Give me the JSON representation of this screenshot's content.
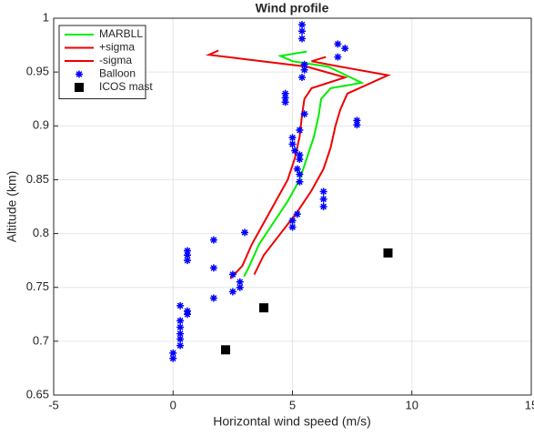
{
  "chart_data": {
    "type": "line",
    "title": "Wind profile",
    "x_label": "Horizontal wind speed (m/s)",
    "y_label": "Altitude (km)",
    "xlim": [
      -5,
      15
    ],
    "xticks": [
      -5,
      0,
      5,
      10,
      15
    ],
    "ylim": [
      0.65,
      1
    ],
    "yticks": [
      0.65,
      0.7,
      0.75,
      0.8,
      0.85,
      0.9,
      0.95,
      1
    ],
    "grid": true,
    "legend": "upper-left",
    "series": [
      {
        "name": "MARBLL",
        "color": "#00ee00",
        "mode": "line",
        "x": [
          2.97,
          3.2,
          3.6,
          4.2,
          4.8,
          5.3,
          5.6,
          5.9,
          6.1,
          6.2,
          6.6,
          7.9,
          6.5,
          5.0,
          4.5,
          5.6
        ],
        "y": [
          0.76,
          0.77,
          0.79,
          0.81,
          0.83,
          0.85,
          0.87,
          0.89,
          0.91,
          0.925,
          0.935,
          0.94,
          0.955,
          0.96,
          0.965,
          0.969
        ]
      },
      {
        "name": "+sigma",
        "color": "#ee0000",
        "mode": "line",
        "x": [
          2.4,
          2.9,
          3.3,
          3.8,
          4.3,
          4.8,
          5.1,
          5.3,
          5.4,
          5.5,
          5.8,
          7.2,
          5.6,
          3.0,
          1.5,
          1.9
        ],
        "y": [
          0.758,
          0.77,
          0.79,
          0.81,
          0.83,
          0.85,
          0.87,
          0.89,
          0.91,
          0.925,
          0.935,
          0.945,
          0.955,
          0.962,
          0.966,
          0.97
        ]
      },
      {
        "name": "-sigma",
        "color": "#ee0000",
        "mode": "line",
        "x": [
          3.4,
          3.8,
          4.5,
          5.2,
          5.8,
          6.3,
          6.6,
          6.8,
          7.0,
          7.3,
          9.0,
          7.0,
          5.8,
          6.4
        ],
        "y": [
          0.762,
          0.78,
          0.8,
          0.82,
          0.84,
          0.86,
          0.88,
          0.9,
          0.915,
          0.93,
          0.947,
          0.955,
          0.96,
          0.964
        ]
      },
      {
        "name": "Balloon",
        "color": "#0000ff",
        "mode": "star",
        "x": [
          5.4,
          5.4,
          5.4,
          6.9,
          7.2,
          6.9,
          5.5,
          5.5,
          5.4,
          4.7,
          4.7,
          4.7,
          5.5,
          7.7,
          7.7,
          5.3,
          5.0,
          5.0,
          5.1,
          5.3,
          5.3,
          5.2,
          5.3,
          5.3,
          6.3,
          6.3,
          6.3,
          5.2,
          5.0,
          5.0,
          3.0,
          1.7,
          0.6,
          0.6,
          0.6,
          1.7,
          2.5,
          2.8,
          2.8,
          2.5,
          1.7,
          0.3,
          0.6,
          0.6,
          0.3,
          0.3,
          0.3,
          0.3,
          0.3,
          0.0,
          0.0
        ],
        "y": [
          0.994,
          0.988,
          0.981,
          0.976,
          0.972,
          0.964,
          0.957,
          0.952,
          0.945,
          0.93,
          0.926,
          0.922,
          0.911,
          0.905,
          0.901,
          0.896,
          0.889,
          0.883,
          0.877,
          0.873,
          0.869,
          0.86,
          0.855,
          0.848,
          0.839,
          0.832,
          0.825,
          0.818,
          0.812,
          0.806,
          0.801,
          0.794,
          0.784,
          0.78,
          0.775,
          0.768,
          0.762,
          0.755,
          0.75,
          0.746,
          0.74,
          0.733,
          0.728,
          0.725,
          0.719,
          0.713,
          0.707,
          0.702,
          0.696,
          0.689,
          0.684
        ]
      },
      {
        "name": "ICOS mast",
        "color": "#000000",
        "mode": "square",
        "x": [
          9.0,
          3.8,
          2.2
        ],
        "y": [
          0.782,
          0.731,
          0.692
        ]
      }
    ]
  }
}
